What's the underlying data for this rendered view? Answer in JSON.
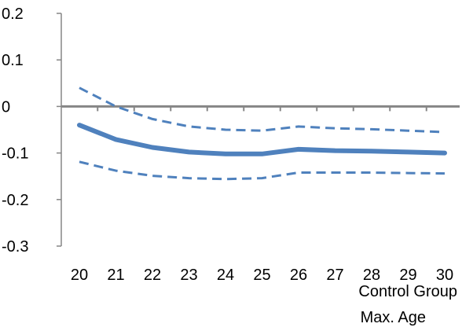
{
  "chart_data": {
    "type": "line",
    "x": [
      20,
      21,
      22,
      23,
      24,
      25,
      26,
      27,
      28,
      29,
      30
    ],
    "xtick_labels": [
      "20",
      "21",
      "22",
      "23",
      "24",
      "25",
      "26",
      "27",
      "28",
      "29",
      "30"
    ],
    "ylim": [
      -0.3,
      0.2
    ],
    "yticks": [
      0.2,
      0.1,
      0,
      -0.1,
      -0.2,
      -0.3
    ],
    "ytick_labels": [
      "0.2",
      "0.1",
      "0",
      "-0.1",
      "-0.2",
      "-0.3"
    ],
    "xlabel_lines": [
      "Control Group",
      "Max. Age"
    ],
    "title": "",
    "legend": "none",
    "grid": false,
    "series": [
      {
        "role": "estimate",
        "style": "solid",
        "color": "#4F81BD",
        "values": [
          -0.04,
          -0.071,
          -0.088,
          -0.098,
          -0.102,
          -0.102,
          -0.092,
          -0.095,
          -0.096,
          -0.098,
          -0.1
        ]
      },
      {
        "role": "upper bound",
        "style": "dashed",
        "color": "#4F81BD",
        "values": [
          0.04,
          0.0,
          -0.027,
          -0.043,
          -0.05,
          -0.052,
          -0.043,
          -0.047,
          -0.049,
          -0.052,
          -0.055
        ]
      },
      {
        "role": "lower bound",
        "style": "dashed",
        "color": "#4F81BD",
        "values": [
          -0.119,
          -0.138,
          -0.149,
          -0.154,
          -0.156,
          -0.154,
          -0.142,
          -0.142,
          -0.142,
          -0.143,
          -0.144
        ]
      }
    ]
  }
}
